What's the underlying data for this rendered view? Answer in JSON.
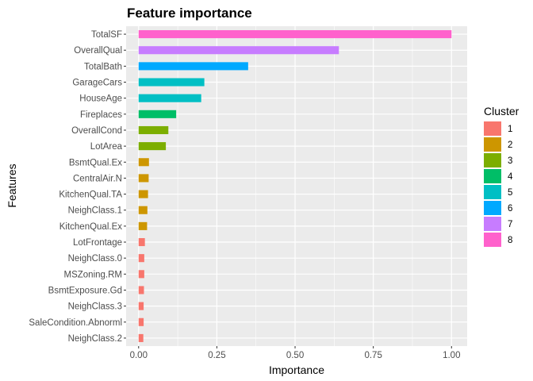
{
  "chart_data": {
    "type": "bar",
    "orientation": "horizontal",
    "title": "Feature importance",
    "xlabel": "Importance",
    "ylabel": "Features",
    "xlim": [
      -0.04,
      1.05
    ],
    "x_ticks": [
      0.0,
      0.25,
      0.5,
      0.75,
      1.0
    ],
    "x_tick_labels": [
      "0.00",
      "0.25",
      "0.50",
      "0.75",
      "1.00"
    ],
    "grid": true,
    "legend_position": "right",
    "legend": {
      "title": "Cluster",
      "entries": [
        {
          "label": "1",
          "color": "#F8766D"
        },
        {
          "label": "2",
          "color": "#CD9600"
        },
        {
          "label": "3",
          "color": "#7CAE00"
        },
        {
          "label": "4",
          "color": "#00BE67"
        },
        {
          "label": "5",
          "color": "#00BFC4"
        },
        {
          "label": "6",
          "color": "#00A9FF"
        },
        {
          "label": "7",
          "color": "#C77CFF"
        },
        {
          "label": "8",
          "color": "#FF61CC"
        }
      ]
    },
    "bars": [
      {
        "feature": "TotalSF",
        "value": 1.0,
        "cluster": "8"
      },
      {
        "feature": "OverallQual",
        "value": 0.64,
        "cluster": "7"
      },
      {
        "feature": "TotalBath",
        "value": 0.35,
        "cluster": "6"
      },
      {
        "feature": "GarageCars",
        "value": 0.21,
        "cluster": "5"
      },
      {
        "feature": "HouseAge",
        "value": 0.2,
        "cluster": "5"
      },
      {
        "feature": "Fireplaces",
        "value": 0.12,
        "cluster": "4"
      },
      {
        "feature": "OverallCond",
        "value": 0.095,
        "cluster": "3"
      },
      {
        "feature": "LotArea",
        "value": 0.087,
        "cluster": "3"
      },
      {
        "feature": "BsmtQual.Ex",
        "value": 0.033,
        "cluster": "2"
      },
      {
        "feature": "CentralAir.N",
        "value": 0.032,
        "cluster": "2"
      },
      {
        "feature": "KitchenQual.TA",
        "value": 0.03,
        "cluster": "2"
      },
      {
        "feature": "NeighClass.1",
        "value": 0.028,
        "cluster": "2"
      },
      {
        "feature": "KitchenQual.Ex",
        "value": 0.027,
        "cluster": "2"
      },
      {
        "feature": "LotFrontage",
        "value": 0.02,
        "cluster": "1"
      },
      {
        "feature": "NeighClass.0",
        "value": 0.018,
        "cluster": "1"
      },
      {
        "feature": "MSZoning.RM",
        "value": 0.018,
        "cluster": "1"
      },
      {
        "feature": "BsmtExposure.Gd",
        "value": 0.017,
        "cluster": "1"
      },
      {
        "feature": "NeighClass.3",
        "value": 0.016,
        "cluster": "1"
      },
      {
        "feature": "SaleCondition.Abnorml",
        "value": 0.016,
        "cluster": "1"
      },
      {
        "feature": "NeighClass.2",
        "value": 0.015,
        "cluster": "1"
      }
    ]
  }
}
